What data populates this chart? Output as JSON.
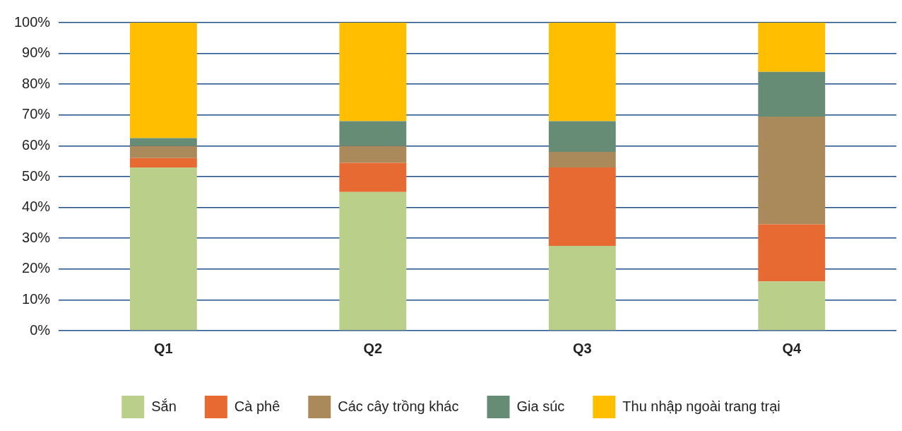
{
  "chart_data": {
    "type": "bar",
    "stacked": true,
    "categories": [
      "Q1",
      "Q2",
      "Q3",
      "Q4"
    ],
    "series": [
      {
        "name": "Sắn",
        "color": "#b9cf8a",
        "values": [
          53,
          45,
          27.5,
          16
        ]
      },
      {
        "name": "Cà phê",
        "color": "#e66a32",
        "values": [
          3,
          9.5,
          25.5,
          18.5
        ]
      },
      {
        "name": "Các cây trồng khác",
        "color": "#aa8a5a",
        "values": [
          4,
          5.5,
          5,
          35
        ]
      },
      {
        "name": "Gia súc",
        "color": "#668c76",
        "values": [
          2.5,
          8,
          10,
          14.5
        ]
      },
      {
        "name": "Thu nhập ngoài trang trại",
        "color": "#ffbf00",
        "values": [
          37.5,
          32,
          32,
          16
        ]
      }
    ],
    "ylim": [
      0,
      100
    ],
    "yticks": [
      {
        "value": 0,
        "label": "0%"
      },
      {
        "value": 10,
        "label": "10%"
      },
      {
        "value": 20,
        "label": "20%"
      },
      {
        "value": 30,
        "label": "30%"
      },
      {
        "value": 40,
        "label": "40%"
      },
      {
        "value": 50,
        "label": "50%"
      },
      {
        "value": 60,
        "label": "60%"
      },
      {
        "value": 70,
        "label": "70%"
      },
      {
        "value": 80,
        "label": "80%"
      },
      {
        "value": 90,
        "label": "90%"
      },
      {
        "value": 100,
        "label": "100%"
      }
    ],
    "grid": "y",
    "legend": "bottom"
  }
}
